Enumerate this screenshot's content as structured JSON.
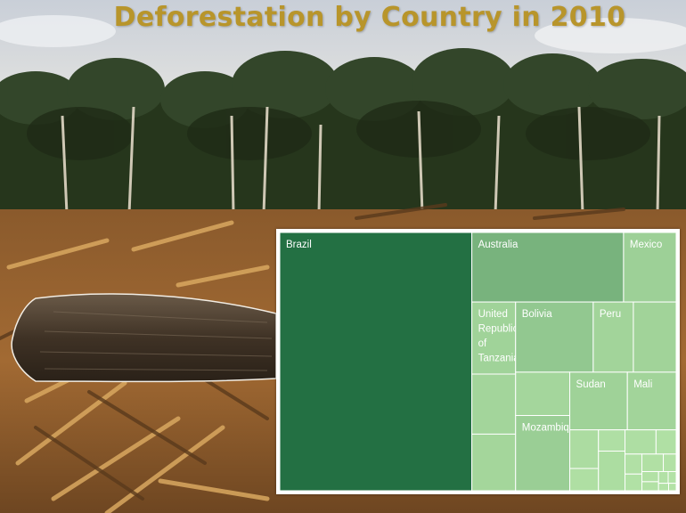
{
  "title": "Deforestation by Country in 2010",
  "colors": {
    "title": "#b8952b",
    "palette_dark": "#237043",
    "palette_light": "#b3e2a6",
    "border": "#ffffff"
  },
  "chart_data": {
    "type": "treemap",
    "title": "Deforestation by Country in 2010",
    "items": [
      {
        "label": "Brazil",
        "value": 2642
      },
      {
        "label": "Australia",
        "value": 562
      },
      {
        "label": "Mexico",
        "value": 195
      },
      {
        "label": "United Republic of Tanzania",
        "value": 168
      },
      {
        "label": "",
        "value": 140
      },
      {
        "label": "",
        "value": 132
      },
      {
        "label": "Bolivia",
        "value": 290
      },
      {
        "label": "Peru",
        "value": 150
      },
      {
        "label": "",
        "value": 160
      },
      {
        "label": "",
        "value": 125
      },
      {
        "label": "Mozambique",
        "value": 217
      },
      {
        "label": "Sudan",
        "value": 177
      },
      {
        "label": "Mali",
        "value": 150
      },
      {
        "label": "",
        "value": 59
      },
      {
        "label": "",
        "value": 34
      },
      {
        "label": "",
        "value": 30
      },
      {
        "label": "",
        "value": 56
      },
      {
        "label": "",
        "value": 40
      },
      {
        "label": "",
        "value": 26
      },
      {
        "label": "",
        "value": 18
      },
      {
        "label": "",
        "value": 15
      },
      {
        "label": "",
        "value": 20
      },
      {
        "label": "",
        "value": 12
      },
      {
        "label": "",
        "value": 9
      },
      {
        "label": "",
        "value": 8
      },
      {
        "label": "",
        "value": 6
      },
      {
        "label": "",
        "value": 5
      },
      {
        "label": "",
        "value": 4
      },
      {
        "label": "",
        "value": 3
      }
    ]
  }
}
